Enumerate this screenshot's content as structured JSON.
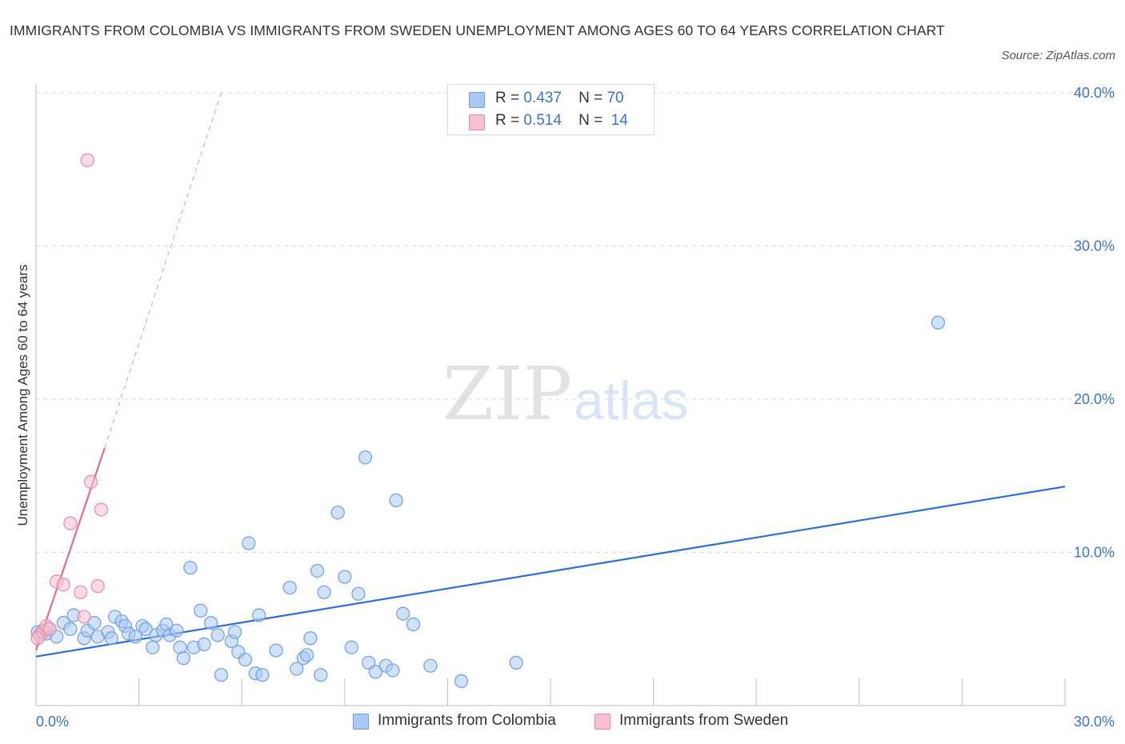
{
  "title": "IMMIGRANTS FROM COLOMBIA VS IMMIGRANTS FROM SWEDEN UNEMPLOYMENT AMONG AGES 60 TO 64 YEARS CORRELATION CHART",
  "source": "Source: ZipAtlas.com",
  "watermark": {
    "zip": "ZIP",
    "atlas": "atlas"
  },
  "colors": {
    "colombia_fill": "#aac8f2",
    "colombia_stroke": "#6f9fde",
    "colombia_line": "#2c6fd1",
    "sweden_fill": "#f7bfd0",
    "sweden_stroke": "#e98aa8",
    "sweden_line": "#e0689a",
    "grid": "#d9d9d9",
    "axis_text": "#3a73c9"
  },
  "legend": {
    "rows": [
      {
        "r_label": "R =",
        "r_value": "0.437",
        "n_label": "N =",
        "n_value": "70"
      },
      {
        "r_label": "R =",
        "r_value": "0.514",
        "n_label": "N =",
        "n_value": "14"
      }
    ]
  },
  "chart_data": {
    "type": "scatter",
    "title": "IMMIGRANTS FROM COLOMBIA VS IMMIGRANTS FROM SWEDEN UNEMPLOYMENT AMONG AGES 60 TO 64 YEARS CORRELATION CHART",
    "xlabel": "",
    "ylabel": "Unemployment Among Ages 60 to 64 years",
    "xlim": [
      0,
      30
    ],
    "ylim": [
      0,
      40
    ],
    "x_tick_labels": [
      "0.0%",
      "30.0%"
    ],
    "y_ticks": [
      10,
      20,
      30,
      40
    ],
    "y_tick_labels": [
      "10.0%",
      "20.0%",
      "30.0%",
      "40.0%"
    ],
    "grid": true,
    "legend_position": "top-center",
    "series": [
      {
        "name": "Immigrants from Colombia",
        "r": 0.437,
        "n": 70,
        "trend": {
          "x": [
            0,
            30
          ],
          "y": [
            3.2,
            14.3
          ],
          "style": "solid"
        },
        "points": [
          [
            0.1,
            4.6
          ],
          [
            0.2,
            4.9
          ],
          [
            0.3,
            4.7
          ],
          [
            0.4,
            5.0
          ],
          [
            0.6,
            4.5
          ],
          [
            0.8,
            5.4
          ],
          [
            1.0,
            5.0
          ],
          [
            1.1,
            5.9
          ],
          [
            1.4,
            4.4
          ],
          [
            1.5,
            4.9
          ],
          [
            1.7,
            5.4
          ],
          [
            1.8,
            4.5
          ],
          [
            2.1,
            4.8
          ],
          [
            2.2,
            4.4
          ],
          [
            2.3,
            5.8
          ],
          [
            2.5,
            5.5
          ],
          [
            2.6,
            5.2
          ],
          [
            2.7,
            4.7
          ],
          [
            2.9,
            4.5
          ],
          [
            3.1,
            5.2
          ],
          [
            3.2,
            5.0
          ],
          [
            3.4,
            3.8
          ],
          [
            3.5,
            4.6
          ],
          [
            3.7,
            4.9
          ],
          [
            3.8,
            5.3
          ],
          [
            3.9,
            4.6
          ],
          [
            4.1,
            4.9
          ],
          [
            4.2,
            3.8
          ],
          [
            4.3,
            3.1
          ],
          [
            4.5,
            9.0
          ],
          [
            4.6,
            3.8
          ],
          [
            4.8,
            6.2
          ],
          [
            4.9,
            4.0
          ],
          [
            5.1,
            5.4
          ],
          [
            5.3,
            4.6
          ],
          [
            5.4,
            2.0
          ],
          [
            5.7,
            4.2
          ],
          [
            5.8,
            4.8
          ],
          [
            5.9,
            3.5
          ],
          [
            6.1,
            3.0
          ],
          [
            6.2,
            10.6
          ],
          [
            6.4,
            2.1
          ],
          [
            6.5,
            5.9
          ],
          [
            6.6,
            2.0
          ],
          [
            7.0,
            3.6
          ],
          [
            7.4,
            7.7
          ],
          [
            7.6,
            2.4
          ],
          [
            7.8,
            3.1
          ],
          [
            7.9,
            3.3
          ],
          [
            8.0,
            4.4
          ],
          [
            8.2,
            8.8
          ],
          [
            8.3,
            2.0
          ],
          [
            8.4,
            7.4
          ],
          [
            8.8,
            12.6
          ],
          [
            9.0,
            8.4
          ],
          [
            9.2,
            3.8
          ],
          [
            9.4,
            7.3
          ],
          [
            9.6,
            16.2
          ],
          [
            9.7,
            2.8
          ],
          [
            9.9,
            2.2
          ],
          [
            10.2,
            2.6
          ],
          [
            10.4,
            2.3
          ],
          [
            10.5,
            13.4
          ],
          [
            10.7,
            6.0
          ],
          [
            11.0,
            5.3
          ],
          [
            11.5,
            2.6
          ],
          [
            12.4,
            1.6
          ],
          [
            14.0,
            2.8
          ],
          [
            26.3,
            25.0
          ],
          [
            0.05,
            4.8
          ]
        ]
      },
      {
        "name": "Immigrants from Sweden",
        "r": 0.514,
        "n": 14,
        "trend": {
          "x": [
            0,
            2.0
          ],
          "y": [
            3.6,
            16.8
          ],
          "style": "solid",
          "extended_to": [
            5.4,
            40.0
          ]
        },
        "points": [
          [
            0.1,
            4.6
          ],
          [
            0.2,
            4.8
          ],
          [
            0.3,
            5.2
          ],
          [
            0.4,
            5.0
          ],
          [
            0.6,
            8.1
          ],
          [
            0.8,
            7.9
          ],
          [
            1.0,
            11.9
          ],
          [
            1.3,
            7.4
          ],
          [
            1.4,
            5.8
          ],
          [
            1.5,
            35.6
          ],
          [
            1.6,
            14.6
          ],
          [
            1.8,
            7.8
          ],
          [
            1.9,
            12.8
          ],
          [
            0.05,
            4.4
          ]
        ]
      }
    ]
  },
  "bottom_legend": [
    "Immigrants from Colombia",
    "Immigrants from Sweden"
  ]
}
